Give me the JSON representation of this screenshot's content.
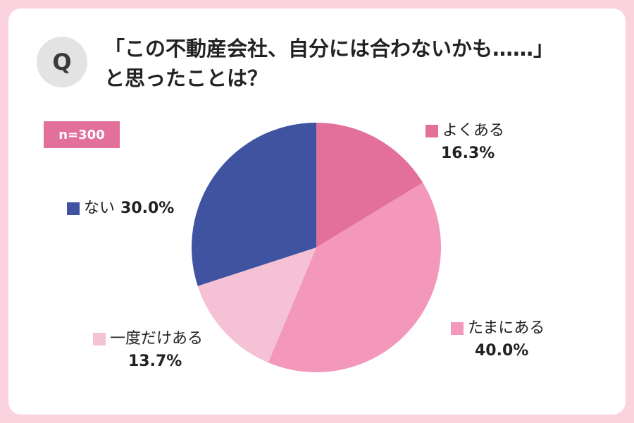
{
  "question": {
    "badge": "Q",
    "line1": "「この不動産会社、自分には合わないかも……」",
    "line2": "と思ったことは？"
  },
  "sample": "n=300",
  "chart_data": {
    "type": "pie",
    "slices": [
      {
        "label": "よくある",
        "value": 16.3,
        "display": "16.3%",
        "color": "#e3709a"
      },
      {
        "label": "たまにある",
        "value": 40.0,
        "display": "40.0%",
        "color": "#f397bb"
      },
      {
        "label": "一度だけある",
        "value": 13.7,
        "display": "13.7%",
        "color": "#f5c1d4"
      },
      {
        "label": "ない",
        "value": 30.0,
        "display": "30.0%",
        "color": "#3f53a1"
      }
    ],
    "start": "12 o'clock",
    "direction": "clockwise"
  }
}
